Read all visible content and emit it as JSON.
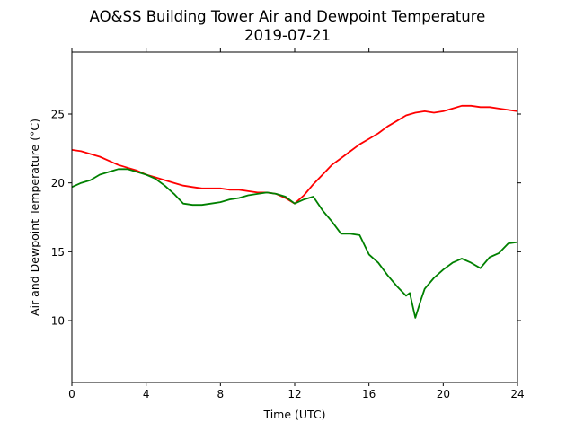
{
  "chart_data": {
    "type": "line",
    "title": "AO&SS Building Tower Air and Dewpoint Temperature",
    "subtitle": "2019-07-21",
    "xlabel": "Time (UTC)",
    "ylabel": "Air and Dewpoint Temperature (°C)",
    "xlim": [
      0,
      24
    ],
    "ylim": [
      5.5,
      29.5
    ],
    "xticks": [
      0,
      4,
      8,
      12,
      16,
      20,
      24
    ],
    "yticks": [
      10,
      15,
      20,
      25
    ],
    "grid": false,
    "colors": {
      "air": "#ff0000",
      "dewpoint": "#008000"
    },
    "series": [
      {
        "key": "air",
        "x": [
          0,
          0.5,
          1,
          1.5,
          2,
          2.5,
          3,
          3.5,
          4,
          4.5,
          5,
          5.5,
          6,
          6.5,
          7,
          7.5,
          8,
          8.5,
          9,
          9.5,
          10,
          10.5,
          11,
          11.5,
          12,
          12.5,
          13,
          13.5,
          14,
          14.5,
          15,
          15.5,
          16,
          16.5,
          17,
          17.5,
          18,
          18.5,
          19,
          19.5,
          20,
          20.5,
          21,
          21.5,
          22,
          22.5,
          23,
          23.5,
          24
        ],
        "values": [
          22.4,
          22.3,
          22.1,
          21.9,
          21.6,
          21.3,
          21.1,
          20.9,
          20.6,
          20.4,
          20.2,
          20.0,
          19.8,
          19.7,
          19.6,
          19.6,
          19.6,
          19.5,
          19.5,
          19.4,
          19.3,
          19.3,
          19.2,
          18.9,
          18.5,
          19.1,
          19.9,
          20.6,
          21.3,
          21.8,
          22.3,
          22.8,
          23.2,
          23.6,
          24.1,
          24.5,
          24.9,
          25.1,
          25.2,
          25.1,
          25.2,
          25.4,
          25.6,
          25.6,
          25.5,
          25.5,
          25.4,
          25.3,
          25.2
        ]
      },
      {
        "key": "dewpoint",
        "x": [
          0,
          0.5,
          1,
          1.5,
          2,
          2.5,
          3,
          3.5,
          4,
          4.5,
          5,
          5.5,
          6,
          6.5,
          7,
          7.5,
          8,
          8.5,
          9,
          9.5,
          10,
          10.5,
          11,
          11.5,
          12,
          12.5,
          13,
          13.5,
          14,
          14.5,
          15,
          15.5,
          16,
          16.5,
          17,
          17.5,
          18,
          18.2,
          18.5,
          18.8,
          19,
          19.5,
          20,
          20.5,
          21,
          21.5,
          22,
          22.5,
          23,
          23.5,
          24
        ],
        "values": [
          19.7,
          20.0,
          20.2,
          20.6,
          20.8,
          21.0,
          21.0,
          20.8,
          20.6,
          20.3,
          19.8,
          19.2,
          18.5,
          18.4,
          18.4,
          18.5,
          18.6,
          18.8,
          18.9,
          19.1,
          19.2,
          19.3,
          19.2,
          19.0,
          18.5,
          18.8,
          19.0,
          18.0,
          17.2,
          16.3,
          16.3,
          16.2,
          14.8,
          14.2,
          13.3,
          12.5,
          11.8,
          12.0,
          10.2,
          11.5,
          12.3,
          13.1,
          13.7,
          14.2,
          14.5,
          14.2,
          13.8,
          14.6,
          14.9,
          15.6,
          15.7
        ]
      }
    ]
  }
}
